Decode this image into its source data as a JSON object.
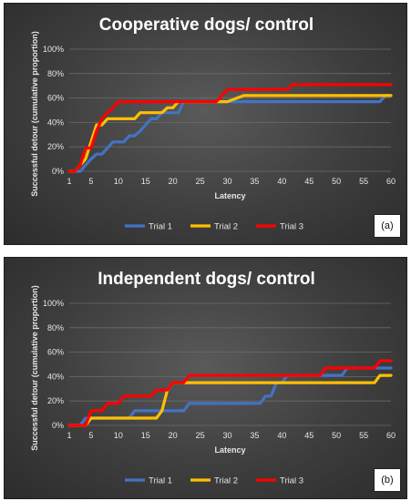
{
  "chart_data": [
    {
      "type": "line",
      "title": "Cooperative dogs/ control",
      "xlabel": "Latency",
      "ylabel": "Successful detour (cumulative proportion)",
      "panel_label": "(a)",
      "xlim": [
        1,
        60
      ],
      "ylim": [
        0,
        100
      ],
      "x_ticks": [
        1,
        5,
        10,
        15,
        20,
        25,
        30,
        35,
        40,
        45,
        50,
        55,
        60
      ],
      "y_ticks": [
        "0%",
        "20%",
        "40%",
        "60%",
        "80%",
        "100%"
      ],
      "y_tick_values": [
        0,
        20,
        40,
        60,
        80,
        100
      ],
      "grid": true,
      "legend": "bottom",
      "series": [
        {
          "name": "Trial 1",
          "color": "#4472C4",
          "x": [
            1,
            3,
            4,
            5,
            6,
            7,
            8,
            9,
            10,
            11,
            12,
            13,
            14,
            15,
            16,
            17,
            18,
            19,
            20,
            21,
            22,
            33,
            34,
            58,
            59,
            60
          ],
          "y": [
            0,
            0,
            5,
            10,
            14,
            14,
            19,
            24,
            24,
            24,
            29,
            29,
            33,
            38,
            43,
            43,
            48,
            48,
            48,
            48,
            57,
            57,
            57,
            57,
            62,
            62
          ]
        },
        {
          "name": "Trial 2",
          "color": "#FFC000",
          "x": [
            1,
            2,
            3,
            4,
            5,
            6,
            7,
            8,
            9,
            10,
            12,
            13,
            14,
            15,
            16,
            17,
            18,
            19,
            20,
            21,
            22,
            29,
            30,
            33,
            34,
            60
          ],
          "y": [
            0,
            0,
            5,
            10,
            24,
            38,
            38,
            43,
            43,
            43,
            43,
            43,
            48,
            48,
            48,
            48,
            48,
            52,
            52,
            57,
            57,
            57,
            57,
            62,
            62,
            62
          ]
        },
        {
          "name": "Trial 3",
          "color": "#FF0000",
          "x": [
            1,
            2,
            3,
            4,
            5,
            6,
            7,
            8,
            9,
            10,
            21,
            22,
            28,
            29,
            30,
            31,
            32,
            33,
            34,
            35,
            36,
            37,
            38,
            39,
            40,
            41,
            42,
            60
          ],
          "y": [
            0,
            0,
            5,
            19,
            19,
            33,
            43,
            48,
            52,
            57,
            57,
            57,
            57,
            62,
            67,
            67,
            67,
            67,
            67,
            67,
            67,
            67,
            67,
            67,
            67,
            67,
            71,
            71
          ]
        }
      ]
    },
    {
      "type": "line",
      "title": "Independent dogs/ control",
      "xlabel": "Latency",
      "ylabel": "Successful detour (cumulative proportion)",
      "panel_label": "(b)",
      "xlim": [
        1,
        60
      ],
      "ylim": [
        0,
        100
      ],
      "x_ticks": [
        1,
        5,
        10,
        15,
        20,
        25,
        30,
        35,
        40,
        45,
        50,
        55,
        60
      ],
      "y_ticks": [
        "0%",
        "20%",
        "40%",
        "60%",
        "80%",
        "100%"
      ],
      "y_tick_values": [
        0,
        20,
        40,
        60,
        80,
        100
      ],
      "grid": true,
      "legend": "bottom",
      "series": [
        {
          "name": "Trial 1",
          "color": "#4472C4",
          "x": [
            1,
            3,
            4,
            5,
            12,
            13,
            21,
            22,
            23,
            24,
            36,
            37,
            38,
            39,
            40,
            41,
            50,
            51,
            52,
            57,
            58,
            60
          ],
          "y": [
            0,
            0,
            6,
            6,
            6,
            12,
            12,
            12,
            18,
            18,
            18,
            24,
            24,
            35,
            35,
            41,
            41,
            41,
            47,
            47,
            47,
            47
          ]
        },
        {
          "name": "Trial 2",
          "color": "#FFC000",
          "x": [
            1,
            4,
            5,
            17,
            18,
            19,
            20,
            21,
            22,
            23,
            56,
            57,
            58,
            60
          ],
          "y": [
            0,
            0,
            6,
            6,
            12,
            29,
            35,
            35,
            35,
            35,
            35,
            35,
            41,
            41
          ]
        },
        {
          "name": "Trial 3",
          "color": "#FF0000",
          "x": [
            1,
            4,
            5,
            6,
            7,
            8,
            9,
            10,
            11,
            12,
            16,
            17,
            18,
            19,
            20,
            21,
            22,
            23,
            46,
            47,
            48,
            57,
            58,
            60
          ],
          "y": [
            0,
            0,
            12,
            12,
            12,
            18,
            18,
            18,
            24,
            24,
            24,
            29,
            29,
            29,
            35,
            35,
            35,
            41,
            41,
            41,
            47,
            47,
            53,
            53
          ]
        }
      ]
    }
  ]
}
